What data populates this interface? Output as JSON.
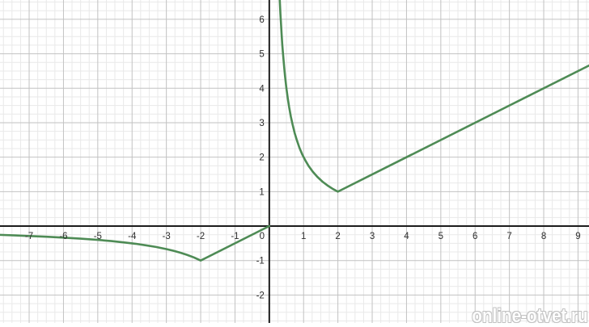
{
  "watermark": {
    "text": "online-otvet.ru"
  },
  "chart_data": {
    "type": "line",
    "title": "",
    "xlabel": "",
    "ylabel": "",
    "xlim": [
      -7.85,
      9.32
    ],
    "ylim": [
      -2.81,
      6.56
    ],
    "grid": {
      "show": true,
      "major_step": 1,
      "minor_step": 0.25,
      "legend": "none"
    },
    "colors": {
      "curve": "#4e8b55",
      "axis": "#1c1c1c",
      "grid_major": "#c2c2c2",
      "grid_minor": "#e9e9e9",
      "tick_label": "#2f2f2f",
      "background": "#ffffff",
      "watermark": "#bfbfbf"
    },
    "x_ticks": {
      "values": [
        -7,
        -6,
        -5,
        -4,
        -3,
        -2,
        -1,
        0,
        1,
        2,
        3,
        4,
        5,
        6,
        7,
        8,
        9
      ],
      "labels": [
        "-7",
        "-6",
        "-5",
        "-4",
        "-3",
        "-2",
        "-1",
        "0",
        "1",
        "2",
        "3",
        "4",
        "5",
        "6",
        "7",
        "8",
        "9"
      ]
    },
    "y_ticks": {
      "values": [
        -2,
        -1,
        1,
        2,
        3,
        4,
        5,
        6
      ],
      "labels": [
        "-2",
        "-1",
        "1",
        "2",
        "3",
        "4",
        "5",
        "6"
      ]
    },
    "key_points": {
      "local_min_right": [
        2,
        1
      ],
      "local_max_style_cusp_left": [
        -2,
        -1
      ],
      "left_branch_limit": "y approaches 0 as x goes to -infinity",
      "right_branch_limit": "y approaches +infinity as x goes to 0+"
    },
    "series": [
      {
        "name": "piecewise-curve",
        "stroke_width": 2.6,
        "segments": [
          [
            [
              -7.9,
              -0.253
            ],
            [
              -7.4,
              -0.27
            ],
            [
              -7.0,
              -0.286
            ],
            [
              -6.5,
              -0.308
            ],
            [
              -6.0,
              -0.333
            ],
            [
              -5.5,
              -0.364
            ],
            [
              -5.0,
              -0.4
            ],
            [
              -4.6,
              -0.435
            ],
            [
              -4.2,
              -0.476
            ],
            [
              -3.9,
              -0.513
            ],
            [
              -3.6,
              -0.556
            ],
            [
              -3.3,
              -0.606
            ],
            [
              -3.0,
              -0.667
            ],
            [
              -2.8,
              -0.714
            ],
            [
              -2.6,
              -0.769
            ],
            [
              -2.4,
              -0.833
            ],
            [
              -2.2,
              -0.909
            ],
            [
              -2.05,
              -0.976
            ],
            [
              -2.0,
              -1.0
            ],
            [
              0.0,
              0.0
            ]
          ],
          [
            [
              0.298,
              6.7
            ],
            [
              0.31,
              6.452
            ],
            [
              0.325,
              6.154
            ],
            [
              0.34,
              5.882
            ],
            [
              0.36,
              5.556
            ],
            [
              0.38,
              5.263
            ],
            [
              0.4,
              5.0
            ],
            [
              0.43,
              4.651
            ],
            [
              0.46,
              4.348
            ],
            [
              0.5,
              4.0
            ],
            [
              0.54,
              3.704
            ],
            [
              0.58,
              3.448
            ],
            [
              0.63,
              3.175
            ],
            [
              0.68,
              2.941
            ],
            [
              0.74,
              2.703
            ],
            [
              0.8,
              2.5
            ],
            [
              0.88,
              2.273
            ],
            [
              0.96,
              2.083
            ],
            [
              1.05,
              1.905
            ],
            [
              1.15,
              1.739
            ],
            [
              1.27,
              1.575
            ],
            [
              1.4,
              1.429
            ],
            [
              1.55,
              1.29
            ],
            [
              1.72,
              1.163
            ],
            [
              1.86,
              1.075
            ],
            [
              2.0,
              1.0
            ],
            [
              9.35,
              4.675
            ]
          ]
        ]
      }
    ]
  }
}
